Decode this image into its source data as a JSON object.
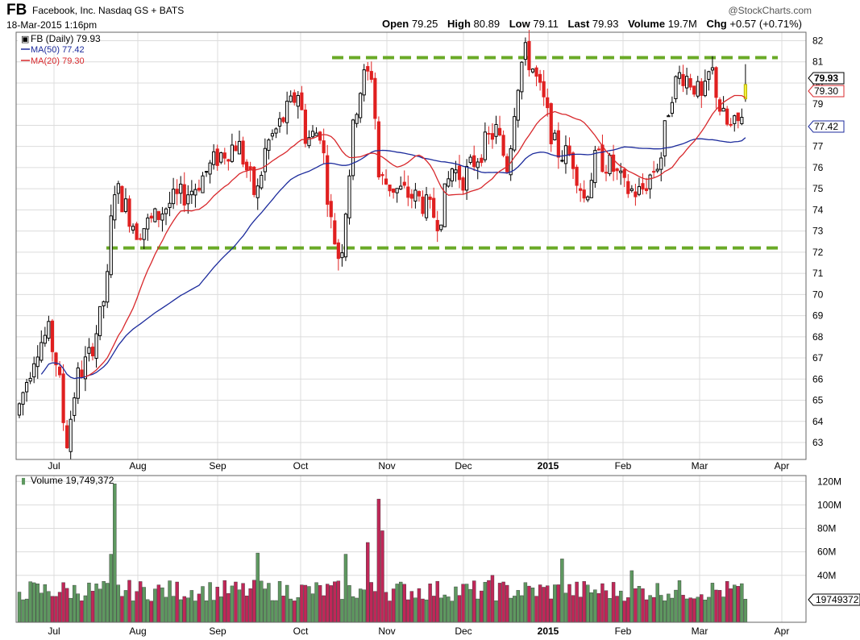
{
  "header": {
    "ticker": "FB",
    "company": "Facebook, Inc. Nasdaq GS + BATS",
    "datetime": "18-Mar-2015 1:16pm",
    "brand": "@StockCharts.com",
    "open_label": "Open",
    "open": "79.25",
    "high_label": "High",
    "high": "80.89",
    "low_label": "Low",
    "low": "79.11",
    "last_label": "Last",
    "last": "79.93",
    "volume_label": "Volume",
    "volume": "19.7M",
    "chg_label": "Chg",
    "chg": "+0.57 (+0.71%)"
  },
  "legend": {
    "price": "FB (Daily) 79.93",
    "ma50": "MA(50) 77.42",
    "ma20": "MA(20) 79.30",
    "volume": "Volume 19,749,372"
  },
  "badges": {
    "last": "79.93",
    "ma20": "79.30",
    "ma50": "77.42",
    "volume": "19749372"
  },
  "colors": {
    "up": "#000000",
    "down": "#e02020",
    "ma50": "#1c2b9c",
    "ma20": "#d8282c",
    "support_resistance": "#6aaa27",
    "vol_up": "#5e9860",
    "vol_down": "#c02758",
    "highlight": "#f3ef3c"
  },
  "chart_data": [
    {
      "type": "candlestick",
      "title": "FB (Daily)",
      "x_labels": [
        "Jul",
        "Aug",
        "Sep",
        "Oct",
        "Nov",
        "Dec",
        "2015",
        "Feb",
        "Mar",
        "Apr"
      ],
      "ylim": [
        62.2,
        82.4
      ],
      "y_ticks": [
        63,
        64,
        65,
        66,
        67,
        68,
        69,
        70,
        71,
        72,
        73,
        74,
        75,
        76,
        77,
        78,
        79,
        80,
        81,
        82
      ],
      "grid": true,
      "horizontal_lines": [
        81.2,
        72.2
      ],
      "key_points": [
        {
          "date": "Jun 2014",
          "close": 64.5
        },
        {
          "date": "Jul 2014",
          "close": 68.0
        },
        {
          "date": "Jul 2014 low",
          "close": 62.5
        },
        {
          "date": "late Jul 2014",
          "close": 75.2
        },
        {
          "date": "Aug 2014",
          "close": 74.0
        },
        {
          "date": "Sep 2014",
          "close": 78.0
        },
        {
          "date": "Oct 2014",
          "close": 77.5
        },
        {
          "date": "Oct 2014 low",
          "close": 71.0
        },
        {
          "date": "late Oct 2014",
          "close": 80.3
        },
        {
          "date": "Nov 2014",
          "close": 74.5
        },
        {
          "date": "Dec 2014",
          "close": 77.5
        },
        {
          "date": "late Dec 2014",
          "close": 81.3
        },
        {
          "date": "Jan 2015",
          "close": 76.0
        },
        {
          "date": "Feb 2015",
          "close": 75.0
        },
        {
          "date": "late Feb 2015",
          "close": 79.5
        },
        {
          "date": "Mar 2015",
          "close": 78.0
        },
        {
          "date": "18-Mar-2015",
          "close": 79.93
        }
      ],
      "series": [
        {
          "name": "MA(50)",
          "last": 77.42
        },
        {
          "name": "MA(20)",
          "last": 79.3
        }
      ],
      "last": 79.93
    },
    {
      "type": "bar",
      "title": "Volume",
      "ylim": [
        0,
        125
      ],
      "y_ticks_millions": [
        40,
        60,
        80,
        100,
        120
      ],
      "y_tick_labels": [
        "40M",
        "60M",
        "80M",
        "100M",
        "120M"
      ],
      "peak_millions": 118,
      "last_millions": 19.7
    }
  ]
}
